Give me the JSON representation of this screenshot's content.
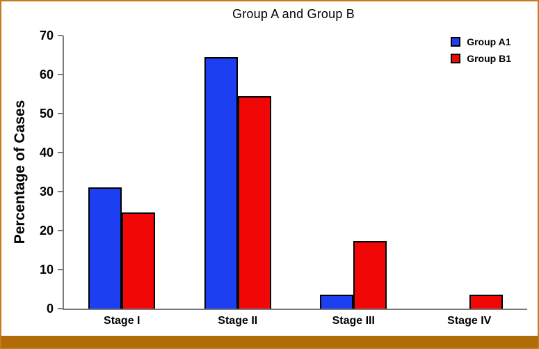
{
  "title": "Group A and Group B",
  "chart_data": {
    "type": "bar",
    "title": "Group A and Group B",
    "ylabel": "Percentage of Cases",
    "xlabel": "",
    "categories": [
      "Stage I",
      "Stage II",
      "Stage III",
      "Stage IV"
    ],
    "series": [
      {
        "name": "Group A1",
        "color": "#1c3ff2",
        "values": [
          31,
          64.4,
          3.6,
          0
        ]
      },
      {
        "name": "Group B1",
        "color": "#f20707",
        "values": [
          24.6,
          54.5,
          17.3,
          3.6
        ]
      }
    ],
    "ylim": [
      0,
      70
    ],
    "y_ticks": [
      0,
      10,
      20,
      30,
      40,
      50,
      60,
      70
    ],
    "grid": false,
    "legend_position": "top-right",
    "bar_border_color": "#000000",
    "axis_color": "#7a7a7a"
  },
  "frame": {
    "border_color": "#c8791c",
    "bottom_band_color": "#b06c06",
    "background": "#ffffff"
  }
}
